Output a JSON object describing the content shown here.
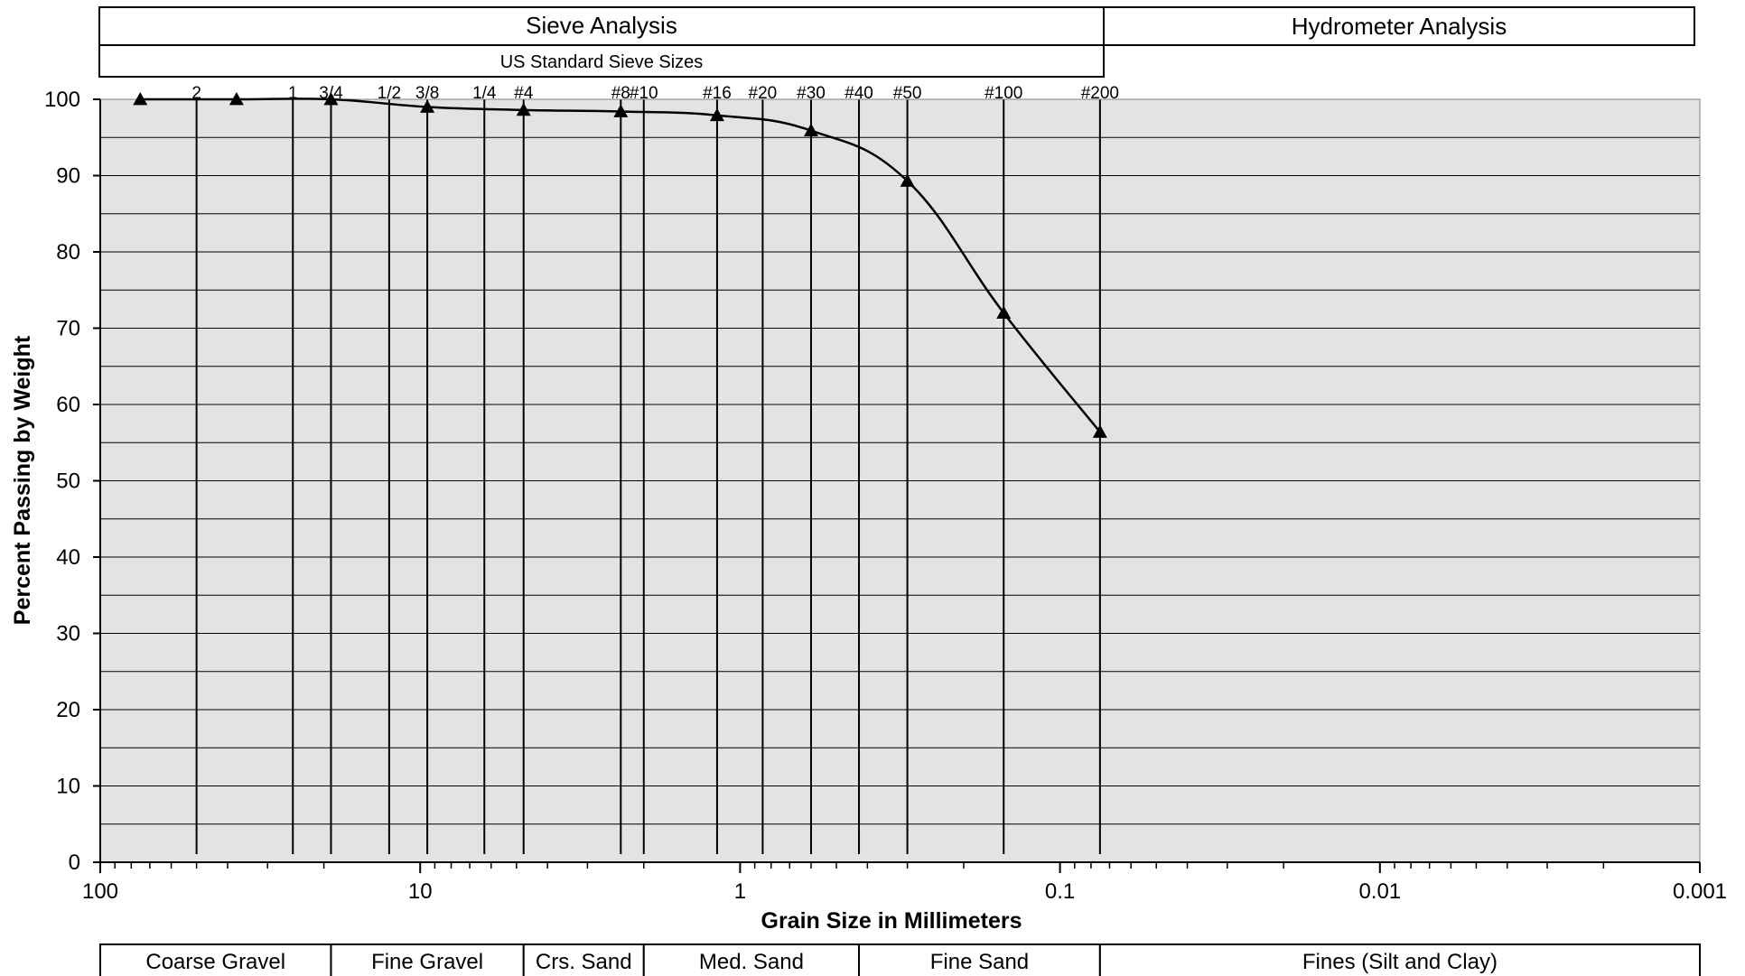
{
  "chart_data": {
    "type": "line",
    "header": {
      "sieve_analysis": "Sieve Analysis",
      "hydrometer_analysis": "Hydrometer Analysis",
      "standard_sizes": "US Standard Sieve Sizes"
    },
    "xlabel": "Grain Size in Millimeters",
    "ylabel": "Percent Passing by Weight",
    "x_scale": "log",
    "x_reversed": true,
    "xlim": [
      100,
      0.001
    ],
    "ylim": [
      0,
      100
    ],
    "x_ticks": [
      {
        "value": 100,
        "label": "100"
      },
      {
        "value": 10,
        "label": "10"
      },
      {
        "value": 1,
        "label": "1"
      },
      {
        "value": 0.1,
        "label": "0.1"
      },
      {
        "value": 0.01,
        "label": "0.01"
      },
      {
        "value": 0.001,
        "label": "0.001"
      }
    ],
    "y_ticks": [
      {
        "value": 0,
        "label": "0"
      },
      {
        "value": 10,
        "label": "10"
      },
      {
        "value": 20,
        "label": "20"
      },
      {
        "value": 30,
        "label": "30"
      },
      {
        "value": 40,
        "label": "40"
      },
      {
        "value": 50,
        "label": "50"
      },
      {
        "value": 60,
        "label": "60"
      },
      {
        "value": 70,
        "label": "70"
      },
      {
        "value": 80,
        "label": "80"
      },
      {
        "value": 90,
        "label": "90"
      },
      {
        "value": 100,
        "label": "100"
      }
    ],
    "y_grid_step": 5,
    "grid": true,
    "plot_background": "#e3e3e3",
    "sieves": [
      {
        "label": "2",
        "size": 50
      },
      {
        "label": "1",
        "size": 25
      },
      {
        "label": "3/4",
        "size": 19
      },
      {
        "label": "1/2",
        "size": 12.5
      },
      {
        "label": "3/8",
        "size": 9.5
      },
      {
        "label": "1/4",
        "size": 6.3
      },
      {
        "label": "#4",
        "size": 4.75
      },
      {
        "label": "#8",
        "size": 2.36
      },
      {
        "label": "#10",
        "size": 2.0
      },
      {
        "label": "#16",
        "size": 1.18
      },
      {
        "label": "#20",
        "size": 0.85
      },
      {
        "label": "#30",
        "size": 0.6
      },
      {
        "label": "#40",
        "size": 0.425
      },
      {
        "label": "#50",
        "size": 0.3
      },
      {
        "label": "#100",
        "size": 0.15
      },
      {
        "label": "#200",
        "size": 0.075
      }
    ],
    "series": [
      {
        "marker": "triangle",
        "color": "#000000",
        "points": [
          {
            "x": 75,
            "y": 100
          },
          {
            "x": 37.5,
            "y": 100
          },
          {
            "x": 19,
            "y": 100
          },
          {
            "x": 9.5,
            "y": 99
          },
          {
            "x": 4.75,
            "y": 98.6
          },
          {
            "x": 2.36,
            "y": 98.4
          },
          {
            "x": 1.18,
            "y": 97.9
          },
          {
            "x": 0.6,
            "y": 95.9
          },
          {
            "x": 0.3,
            "y": 89.3
          },
          {
            "x": 0.15,
            "y": 72
          },
          {
            "x": 0.075,
            "y": 56.4
          }
        ]
      }
    ],
    "classification": [
      {
        "label": "Coarse Gravel",
        "from": 100,
        "to": 19
      },
      {
        "label": "Fine Gravel",
        "from": 19,
        "to": 4.75
      },
      {
        "label": "Crs. Sand",
        "from": 4.75,
        "to": 2.0
      },
      {
        "label": "Med. Sand",
        "from": 2.0,
        "to": 0.425
      },
      {
        "label": "Fine Sand",
        "from": 0.425,
        "to": 0.075
      },
      {
        "label": "Fines (Silt and Clay)",
        "from": 0.075,
        "to": 0.001
      }
    ]
  }
}
